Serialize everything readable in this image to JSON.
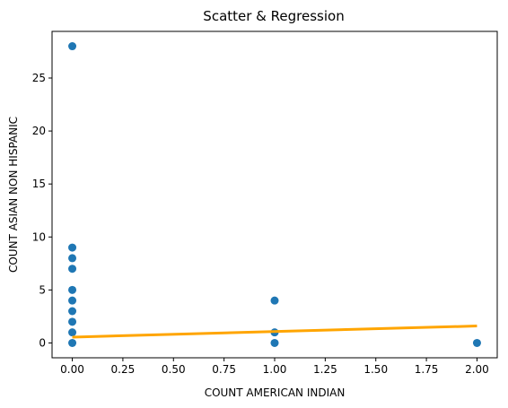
{
  "chart_data": {
    "type": "scatter",
    "title": "Scatter & Regression",
    "xlabel": "COUNT AMERICAN INDIAN",
    "ylabel": "COUNT ASIAN NON HISPANIC",
    "xlim": [
      -0.1,
      2.1
    ],
    "ylim": [
      -1.4,
      29.4
    ],
    "x_ticks": [
      0.0,
      0.25,
      0.5,
      0.75,
      1.0,
      1.25,
      1.5,
      1.75,
      2.0
    ],
    "x_tick_labels": [
      "0.00",
      "0.25",
      "0.50",
      "0.75",
      "1.00",
      "1.25",
      "1.50",
      "1.75",
      "2.00"
    ],
    "y_ticks": [
      0,
      5,
      10,
      15,
      20,
      25
    ],
    "y_tick_labels": [
      "0",
      "5",
      "10",
      "15",
      "20",
      "25"
    ],
    "grid": false,
    "series": [
      {
        "kind": "scatter",
        "color": "#1f77b4",
        "points": [
          {
            "x": 0,
            "y": 28
          },
          {
            "x": 0,
            "y": 9
          },
          {
            "x": 0,
            "y": 8
          },
          {
            "x": 0,
            "y": 7
          },
          {
            "x": 0,
            "y": 5
          },
          {
            "x": 0,
            "y": 4
          },
          {
            "x": 0,
            "y": 3
          },
          {
            "x": 0,
            "y": 2
          },
          {
            "x": 0,
            "y": 1
          },
          {
            "x": 0,
            "y": 0
          },
          {
            "x": 1,
            "y": 4
          },
          {
            "x": 1,
            "y": 1
          },
          {
            "x": 1,
            "y": 0
          },
          {
            "x": 2,
            "y": 0
          }
        ]
      },
      {
        "kind": "line",
        "color": "#ffa500",
        "points": [
          {
            "x": 0,
            "y": 0.55
          },
          {
            "x": 2,
            "y": 1.6
          }
        ]
      }
    ]
  }
}
